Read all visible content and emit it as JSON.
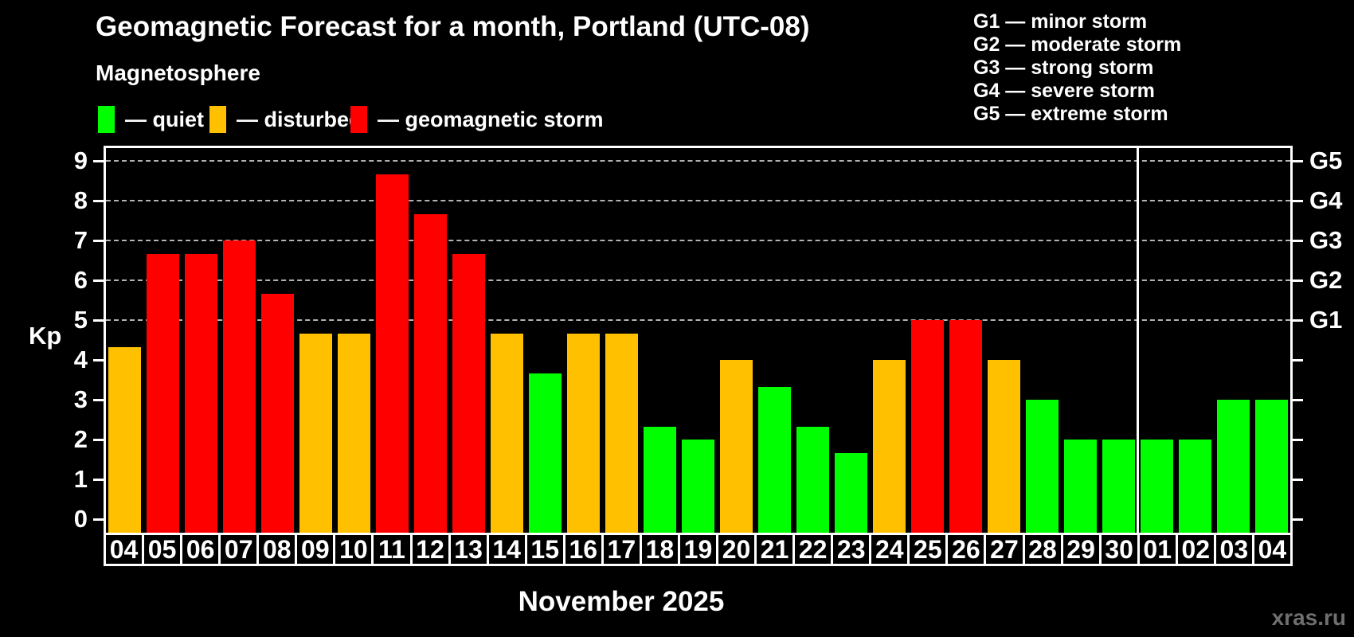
{
  "title": "Geomagnetic Forecast for a month, Portland (UTC-08)",
  "subtitle": "Magnetosphere",
  "watermark": "xras.ru",
  "axis": {
    "y_label": "Kp",
    "y_ticks": [
      "0",
      "1",
      "2",
      "3",
      "4",
      "5",
      "6",
      "7",
      "8",
      "9"
    ],
    "g_labels": [
      {
        "label": "G1",
        "kp": 5
      },
      {
        "label": "G2",
        "kp": 6
      },
      {
        "label": "G3",
        "kp": 7
      },
      {
        "label": "G4",
        "kp": 8
      },
      {
        "label": "G5",
        "kp": 9
      }
    ],
    "x_month_label": "November 2025"
  },
  "legend": [
    {
      "key": "quiet",
      "label": "— quiet",
      "color": "#00ff00"
    },
    {
      "key": "disturbed",
      "label": "— disturbed",
      "color": "#ffc000"
    },
    {
      "key": "storm",
      "label": "— geomagnetic storm",
      "color": "#ff0000"
    }
  ],
  "g_scale_legend": [
    "G1 — minor storm",
    "G2 — moderate storm",
    "G3 — strong storm",
    "G4 — severe storm",
    "G5 — extreme storm"
  ],
  "chart_data": {
    "type": "bar",
    "title": "Geomagnetic Forecast for a month, Portland (UTC-08)",
    "xlabel": "November 2025",
    "ylabel": "Kp",
    "ylim": [
      0,
      9.4
    ],
    "grid": "dashed horizontal at Kp 5-9 (G1-G5 storm levels)",
    "legend_position": "top-left",
    "categories": [
      "04",
      "05",
      "06",
      "07",
      "08",
      "09",
      "10",
      "11",
      "12",
      "13",
      "14",
      "15",
      "16",
      "17",
      "18",
      "19",
      "20",
      "21",
      "22",
      "23",
      "24",
      "25",
      "26",
      "27",
      "28",
      "29",
      "30",
      "01",
      "02",
      "03",
      "04"
    ],
    "values": [
      4.33,
      6.67,
      6.67,
      7,
      5.67,
      4.67,
      4.67,
      8.67,
      7.67,
      6.67,
      4.67,
      3.67,
      4.67,
      4.67,
      2.33,
      2,
      4,
      3.33,
      2.33,
      1.67,
      4,
      5,
      5,
      4,
      3,
      2,
      2,
      2,
      2,
      3,
      3
    ],
    "statuses": [
      "disturbed",
      "storm",
      "storm",
      "storm",
      "storm",
      "disturbed",
      "disturbed",
      "storm",
      "storm",
      "storm",
      "disturbed",
      "quiet",
      "disturbed",
      "disturbed",
      "quiet",
      "quiet",
      "disturbed",
      "quiet",
      "quiet",
      "quiet",
      "disturbed",
      "storm",
      "storm",
      "disturbed",
      "quiet",
      "quiet",
      "quiet",
      "quiet",
      "quiet",
      "quiet",
      "quiet"
    ],
    "gridlines_at": [
      5,
      6,
      7,
      8,
      9
    ],
    "month_separator_after_index": 26
  }
}
